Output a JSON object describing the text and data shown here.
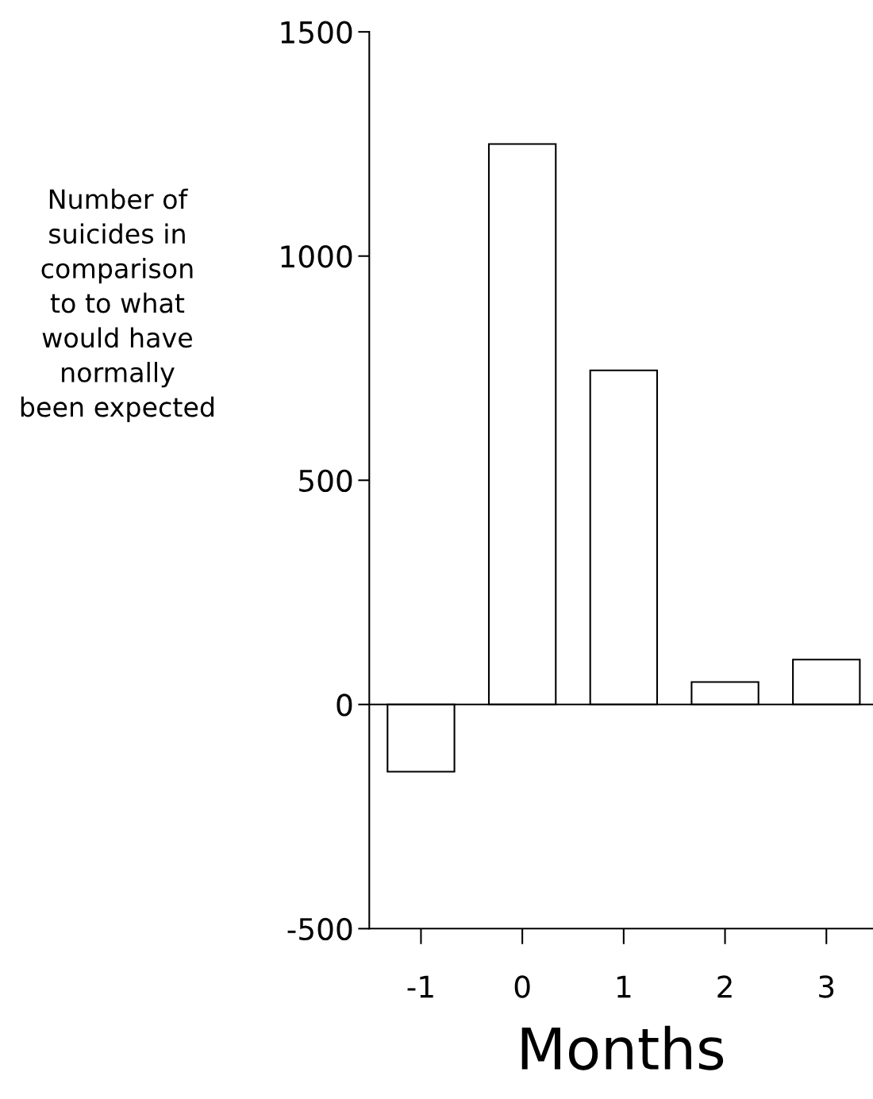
{
  "chart_data": {
    "type": "bar",
    "categories": [
      "-1",
      "0",
      "1",
      "2",
      "3"
    ],
    "values": [
      -150,
      1250,
      745,
      50,
      100
    ],
    "color": "#ffffff",
    "xlabel": "Months",
    "ylabel": "Number of\nsuicides in\ncomparison\nto to what\nwould have\nnormally\nbeen expected",
    "ylim": [
      -500,
      1500
    ],
    "yticks": [
      -500,
      0,
      500,
      1000,
      1500
    ],
    "ref_lines": [
      {
        "axis": "y",
        "value": 0,
        "color": "#000000"
      }
    ],
    "grid": false,
    "legend": false
  }
}
